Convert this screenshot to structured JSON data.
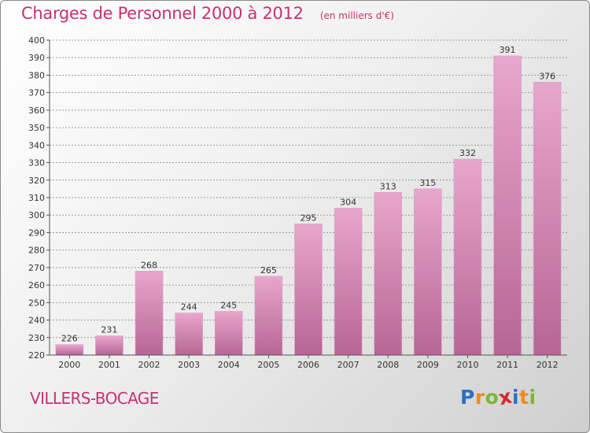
{
  "title": "Charges de Personnel 2000 à 2012",
  "subtitle": "(en milliers d'€)",
  "commune": "VILLERS-BOCAGE",
  "logo": {
    "text": "Proxiti",
    "letter_colors": [
      "#2d6fc0",
      "#f08a1c",
      "#7cb82f",
      "#d6282f",
      "#2d6fc0",
      "#f08a1c",
      "#7cb82f"
    ]
  },
  "colors": {
    "title": "#c8316f",
    "bar_top": "#e8a6cd",
    "bar_bottom": "#b76693",
    "grid": "#9a9a9a",
    "text": "#333333"
  },
  "chart_data": {
    "type": "bar",
    "categories": [
      "2000",
      "2001",
      "2002",
      "2003",
      "2004",
      "2005",
      "2006",
      "2007",
      "2008",
      "2009",
      "2010",
      "2011",
      "2012"
    ],
    "values": [
      226,
      231,
      268,
      244,
      245,
      265,
      295,
      304,
      313,
      315,
      332,
      391,
      376
    ],
    "title": "Charges de Personnel 2000 à 2012",
    "subtitle": "(en milliers d'€)",
    "xlabel": "",
    "ylabel": "",
    "ylim": [
      220,
      400
    ],
    "ytick_step": 10,
    "yticks": [
      "220",
      "230",
      "240",
      "250",
      "260",
      "270",
      "280",
      "290",
      "300",
      "310",
      "320",
      "330",
      "340",
      "350",
      "360",
      "370",
      "380",
      "390",
      "400"
    ],
    "grid": true,
    "legend": "none",
    "data_labels": true
  }
}
